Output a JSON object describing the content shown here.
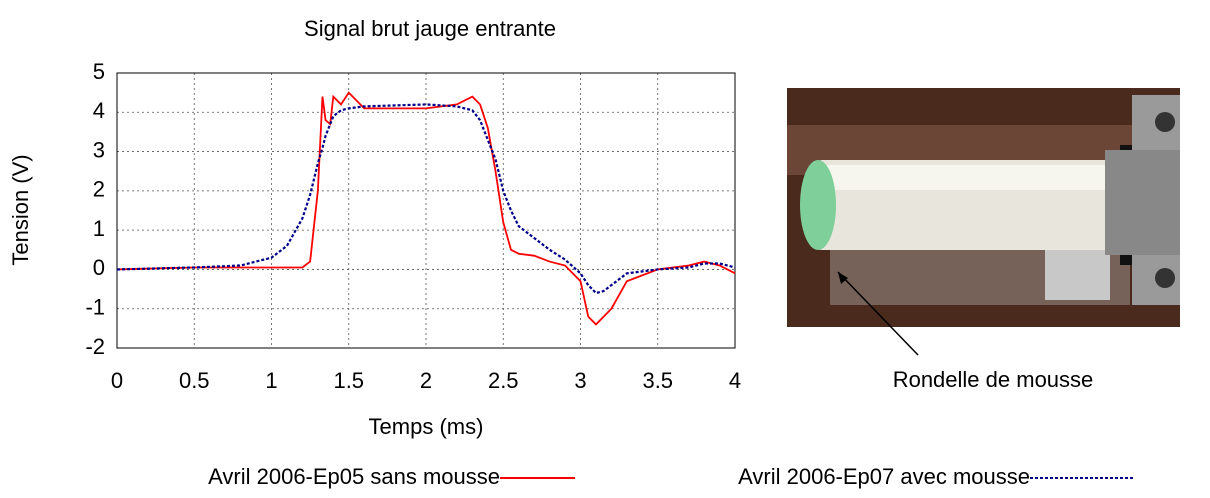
{
  "chart_data": {
    "type": "line",
    "title": "Signal brut jauge entrante",
    "x_label": "Temps (ms)",
    "y_label": "Tension (V)",
    "x": [
      0,
      0.5,
      0.8,
      1.0,
      1.1,
      1.2,
      1.25,
      1.3,
      1.33,
      1.35,
      1.38,
      1.4,
      1.45,
      1.5,
      1.6,
      2.0,
      2.2,
      2.3,
      2.35,
      2.4,
      2.45,
      2.5,
      2.55,
      2.6,
      2.7,
      2.8,
      2.9,
      3.0,
      3.05,
      3.1,
      3.15,
      3.2,
      3.3,
      3.5,
      3.7,
      3.8,
      3.9,
      4.0
    ],
    "series": [
      {
        "name": "Avril 2006-Ep05 sans mousse",
        "color": "#ff0000",
        "style": "solid",
        "values": [
          0,
          0.05,
          0.05,
          0.05,
          0.05,
          0.05,
          0.2,
          2.0,
          4.4,
          3.8,
          3.7,
          4.4,
          4.2,
          4.5,
          4.1,
          4.1,
          4.2,
          4.4,
          4.2,
          3.6,
          2.5,
          1.2,
          0.5,
          0.4,
          0.35,
          0.2,
          0.1,
          -0.3,
          -1.2,
          -1.4,
          -1.2,
          -1.0,
          -0.3,
          0.0,
          0.1,
          0.2,
          0.1,
          -0.1
        ]
      },
      {
        "name": "Avril 2006-Ep07 avec mousse",
        "color": "#00008b",
        "style": "dotted",
        "values": [
          0,
          0.05,
          0.1,
          0.3,
          0.6,
          1.3,
          1.9,
          2.7,
          3.1,
          3.4,
          3.7,
          3.9,
          4.05,
          4.1,
          4.15,
          4.2,
          4.15,
          4.05,
          3.8,
          3.3,
          2.8,
          2.0,
          1.5,
          1.1,
          0.8,
          0.5,
          0.25,
          -0.1,
          -0.4,
          -0.6,
          -0.55,
          -0.4,
          -0.1,
          0.0,
          0.05,
          0.15,
          0.15,
          0.05
        ]
      }
    ],
    "xlim": [
      0,
      4
    ],
    "xticks": [
      0,
      0.5,
      1,
      1.5,
      2,
      2.5,
      3,
      3.5,
      4
    ],
    "ylim": [
      -2,
      5
    ],
    "yticks": [
      -2,
      -1,
      0,
      1,
      2,
      3,
      4,
      5
    ],
    "grid": true,
    "legend": "bottom"
  },
  "photo": {
    "caption": "Rondelle de mousse"
  }
}
